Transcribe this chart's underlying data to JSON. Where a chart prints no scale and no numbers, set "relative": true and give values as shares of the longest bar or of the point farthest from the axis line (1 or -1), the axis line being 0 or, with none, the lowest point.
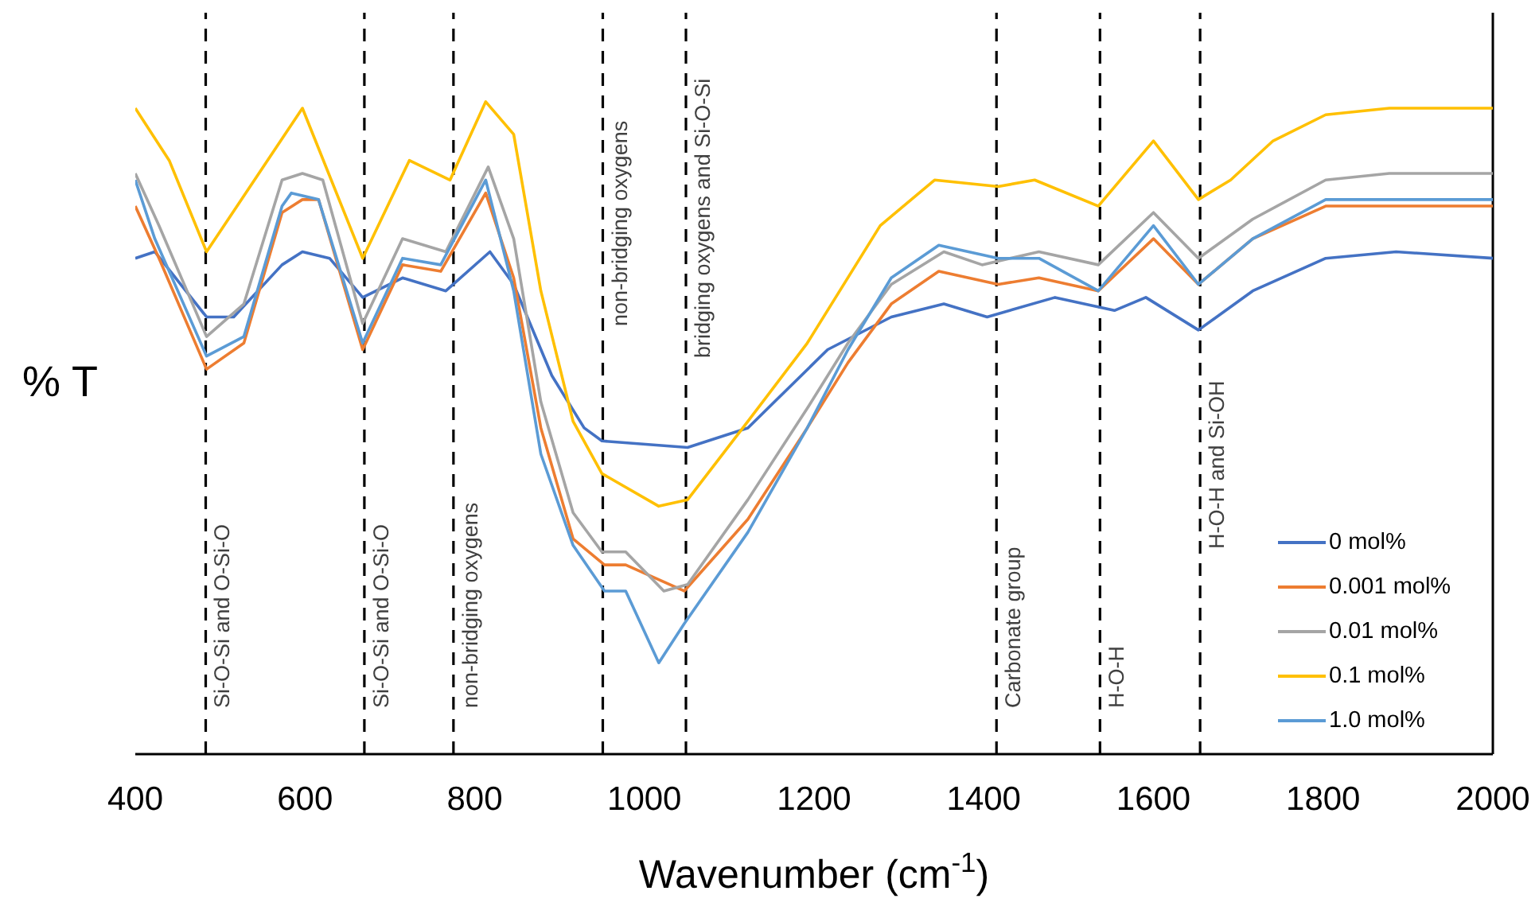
{
  "chart_data": {
    "type": "line",
    "relative": true,
    "xlabel": "Wavenumber (cm$^{-1}$)",
    "ylabel": "% T",
    "xlim": [
      400,
      2000
    ],
    "xticks": [
      400,
      600,
      800,
      1000,
      1200,
      1400,
      1600,
      1800,
      2000
    ],
    "grid": false,
    "legend": "bottom right",
    "line_style": "solid",
    "series": [
      {
        "name": "0 mol%",
        "color": "#4472c4",
        "x": [
          400,
          423,
          484,
          516,
          573,
          597,
          629,
          668,
          715,
          766,
          818,
          846,
          891,
          929,
          950,
          1051,
          1122,
          1216,
          1291,
          1353,
          1404,
          1484,
          1554,
          1591,
          1653,
          1717,
          1803,
          1886,
          2000
        ],
        "values": [
          0.76,
          0.77,
          0.67,
          0.67,
          0.75,
          0.77,
          0.76,
          0.7,
          0.73,
          0.71,
          0.77,
          0.72,
          0.58,
          0.5,
          0.48,
          0.47,
          0.5,
          0.62,
          0.67,
          0.69,
          0.67,
          0.7,
          0.68,
          0.7,
          0.65,
          0.71,
          0.76,
          0.77,
          0.76
        ]
      },
      {
        "name": "0.001 mol%",
        "color": "#ed7d31",
        "x": [
          400,
          428,
          484,
          528,
          573,
          597,
          616,
          668,
          715,
          760,
          813,
          846,
          878,
          916,
          953,
          978,
          1047,
          1122,
          1192,
          1240,
          1291,
          1347,
          1417,
          1465,
          1535,
          1600,
          1653,
          1717,
          1803,
          2000
        ],
        "values": [
          0.84,
          0.76,
          0.59,
          0.63,
          0.83,
          0.85,
          0.85,
          0.62,
          0.75,
          0.74,
          0.86,
          0.73,
          0.5,
          0.33,
          0.29,
          0.29,
          0.25,
          0.36,
          0.5,
          0.6,
          0.69,
          0.74,
          0.72,
          0.73,
          0.71,
          0.79,
          0.72,
          0.79,
          0.84,
          0.84
        ]
      },
      {
        "name": "0.01 mol%",
        "color": "#a5a5a5",
        "x": [
          400,
          428,
          484,
          528,
          573,
          597,
          621,
          668,
          715,
          766,
          816,
          846,
          878,
          916,
          950,
          978,
          1023,
          1051,
          1122,
          1192,
          1240,
          1291,
          1353,
          1398,
          1465,
          1535,
          1600,
          1653,
          1717,
          1803,
          1878,
          2000
        ],
        "values": [
          0.89,
          0.81,
          0.64,
          0.69,
          0.88,
          0.89,
          0.88,
          0.66,
          0.79,
          0.77,
          0.9,
          0.79,
          0.54,
          0.37,
          0.31,
          0.31,
          0.25,
          0.26,
          0.39,
          0.53,
          0.63,
          0.72,
          0.77,
          0.75,
          0.77,
          0.75,
          0.83,
          0.76,
          0.82,
          0.88,
          0.89,
          0.89
        ]
      },
      {
        "name": "0.1 mol%",
        "color": "#ffc000",
        "x": [
          400,
          440,
          484,
          597,
          668,
          723,
          771,
          813,
          846,
          878,
          916,
          950,
          1017,
          1051,
          1122,
          1192,
          1278,
          1342,
          1417,
          1460,
          1535,
          1600,
          1653,
          1691,
          1741,
          1803,
          1878,
          2000
        ],
        "values": [
          0.99,
          0.91,
          0.77,
          0.99,
          0.76,
          0.91,
          0.88,
          1.0,
          0.95,
          0.71,
          0.51,
          0.43,
          0.38,
          0.39,
          0.51,
          0.63,
          0.81,
          0.88,
          0.87,
          0.88,
          0.84,
          0.94,
          0.85,
          0.88,
          0.94,
          0.98,
          0.99,
          0.99
        ]
      },
      {
        "name": "1.0 mol%",
        "color": "#5b9bd5",
        "x": [
          400,
          423,
          484,
          528,
          573,
          584,
          616,
          668,
          715,
          760,
          813,
          846,
          878,
          916,
          953,
          978,
          1017,
          1047,
          1122,
          1192,
          1240,
          1291,
          1347,
          1417,
          1465,
          1535,
          1600,
          1653,
          1717,
          1803,
          2000
        ],
        "values": [
          0.88,
          0.79,
          0.61,
          0.64,
          0.84,
          0.86,
          0.85,
          0.63,
          0.76,
          0.75,
          0.88,
          0.71,
          0.46,
          0.32,
          0.25,
          0.25,
          0.14,
          0.2,
          0.34,
          0.5,
          0.62,
          0.73,
          0.78,
          0.76,
          0.76,
          0.71,
          0.81,
          0.72,
          0.79,
          0.85,
          0.85
        ]
      }
    ],
    "ref_lines": [
      {
        "axis": "x",
        "value": 483,
        "label": "Si-O-Si and O-Si-O",
        "color": "#000000",
        "line_style": "dashed"
      },
      {
        "axis": "x",
        "value": 670,
        "label": "Si-O-Si and O-Si-O",
        "color": "#000000",
        "line_style": "dashed"
      },
      {
        "axis": "x",
        "value": 775,
        "label": "non-bridging oxygens",
        "color": "#000000",
        "line_style": "dashed"
      },
      {
        "axis": "x",
        "value": 951,
        "label": "non-bridging oxygens",
        "color": "#000000",
        "line_style": "dashed"
      },
      {
        "axis": "x",
        "value": 1049,
        "label": "bridging oxygens and Si-O-Si",
        "color": "#000000",
        "line_style": "dashed"
      },
      {
        "axis": "x",
        "value": 1415,
        "label": "Carbonate group",
        "color": "#000000",
        "line_style": "dashed"
      },
      {
        "axis": "x",
        "value": 1537,
        "label": "H-O-H",
        "color": "#000000",
        "line_style": "dashed"
      },
      {
        "axis": "x",
        "value": 1655,
        "label": "H-O-H and Si-OH",
        "color": "#000000",
        "line_style": "dashed"
      }
    ]
  }
}
